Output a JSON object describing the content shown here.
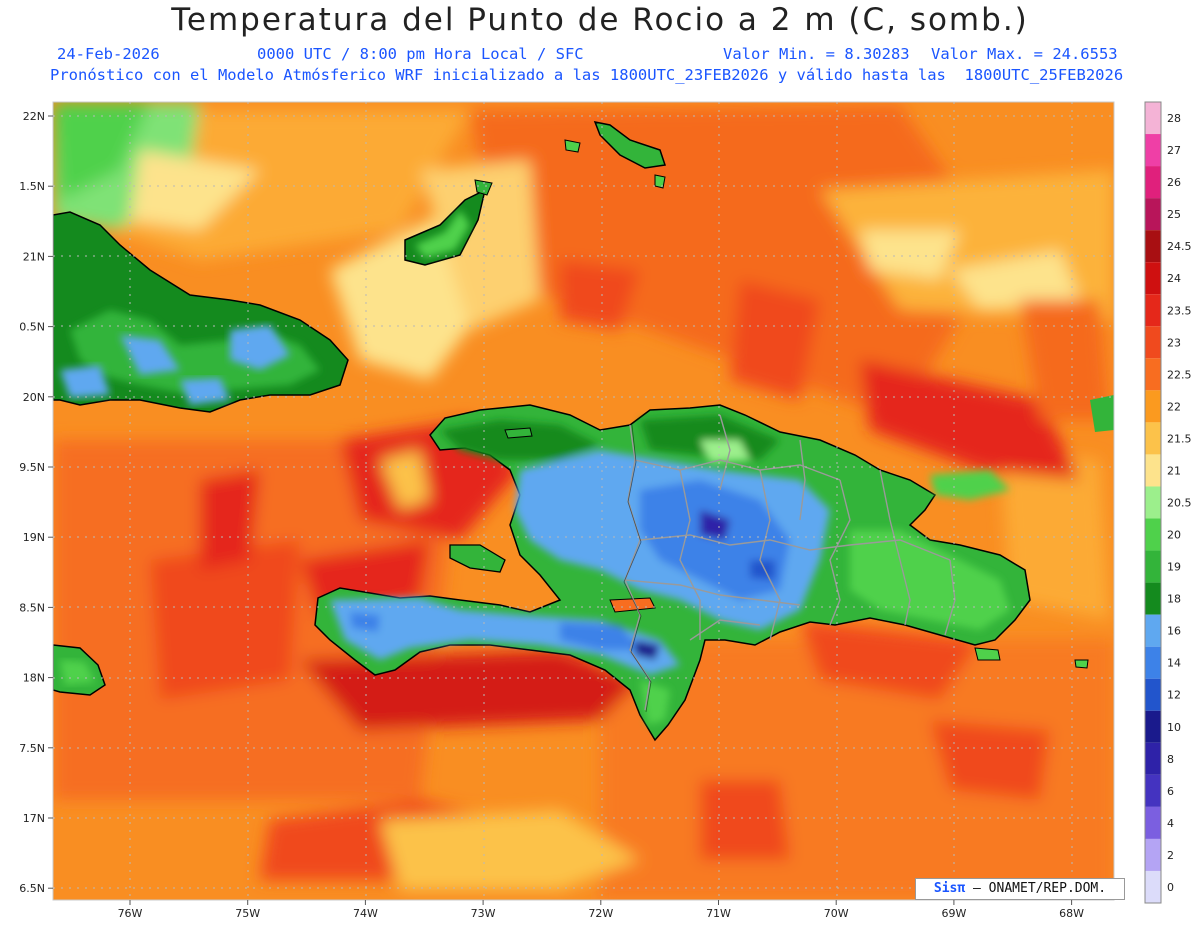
{
  "title": "Temperatura del Punto de Rocio a 2 m (C, somb.)",
  "header": {
    "date": "24-Feb-2026",
    "time": "0000 UTC / 8:00 pm Hora Local / SFC",
    "min_label": "Valor Min. = 8.30283",
    "max_label": "Valor Max. = 24.6553",
    "model_line": "Pronóstico con el Modelo Atmósferico WRF inicializado a las 1800UTC_23FEB2026 y válido hasta las  1800UTC_25FEB2026"
  },
  "axes": {
    "lat_labels": [
      "22N",
      "1.5N",
      "21N",
      "0.5N",
      "20N",
      "9.5N",
      "19N",
      "8.5N",
      "18N",
      "7.5N",
      "17N",
      "6.5N"
    ],
    "lon_labels": [
      "76W",
      "75W",
      "74W",
      "73W",
      "72W",
      "71W",
      "70W",
      "69W",
      "68W"
    ]
  },
  "legend": {
    "levels": [
      {
        "label": "28",
        "color": "#f4b3d6"
      },
      {
        "label": "27",
        "color": "#ef3fa6"
      },
      {
        "label": "26",
        "color": "#e0207c"
      },
      {
        "label": "25",
        "color": "#b8155a"
      },
      {
        "label": "24.5",
        "color": "#a80f12"
      },
      {
        "label": "24",
        "color": "#cf1010"
      },
      {
        "label": "23.5",
        "color": "#e5281a"
      },
      {
        "label": "23",
        "color": "#f04a1e"
      },
      {
        "label": "22.5",
        "color": "#f86d20"
      },
      {
        "label": "22",
        "color": "#fb9a1f"
      },
      {
        "label": "21.5",
        "color": "#fcc24a"
      },
      {
        "label": "21",
        "color": "#fde38c"
      },
      {
        "label": "20.5",
        "color": "#9cef8c"
      },
      {
        "label": "20",
        "color": "#4fd14b"
      },
      {
        "label": "19",
        "color": "#33b43a"
      },
      {
        "label": "18",
        "color": "#148a1e"
      },
      {
        "label": "16",
        "color": "#5fa8f0"
      },
      {
        "label": "14",
        "color": "#3d82e8"
      },
      {
        "label": "12",
        "color": "#2255cc"
      },
      {
        "label": "10",
        "color": "#1a1a8c"
      },
      {
        "label": "8",
        "color": "#2e22a8"
      },
      {
        "label": "6",
        "color": "#4433c0"
      },
      {
        "label": "4",
        "color": "#7b5fe0"
      },
      {
        "label": "2",
        "color": "#b4a4f4"
      },
      {
        "label": "0",
        "color": "#dcdcfa"
      }
    ]
  },
  "credit": {
    "logo": "Sisπ",
    "text": "– ONAMET/REP.DOM."
  }
}
